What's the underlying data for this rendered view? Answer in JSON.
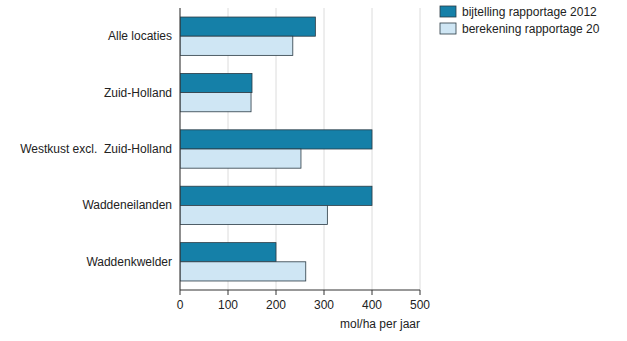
{
  "chart_data": {
    "type": "bar",
    "orientation": "horizontal",
    "categories": [
      "Alle locaties",
      "Zuid-Holland",
      "Westkust excl.  Zuid-Holland",
      "Waddeneilanden",
      "Waddenkwelder"
    ],
    "series": [
      {
        "name": "bijtelling rapportage 2012",
        "color": "#1580a8",
        "values": [
          282,
          150,
          400,
          400,
          200
        ]
      },
      {
        "name": "berekening rapportage 20",
        "color": "#cfe6f4",
        "values": [
          235,
          148,
          252,
          307,
          262
        ]
      }
    ],
    "xlabel": "mol/ha per jaar",
    "xlim": [
      0,
      500
    ],
    "xticks": [
      0,
      100,
      200,
      300,
      400,
      500
    ],
    "grid": true,
    "legend": "top-right"
  }
}
